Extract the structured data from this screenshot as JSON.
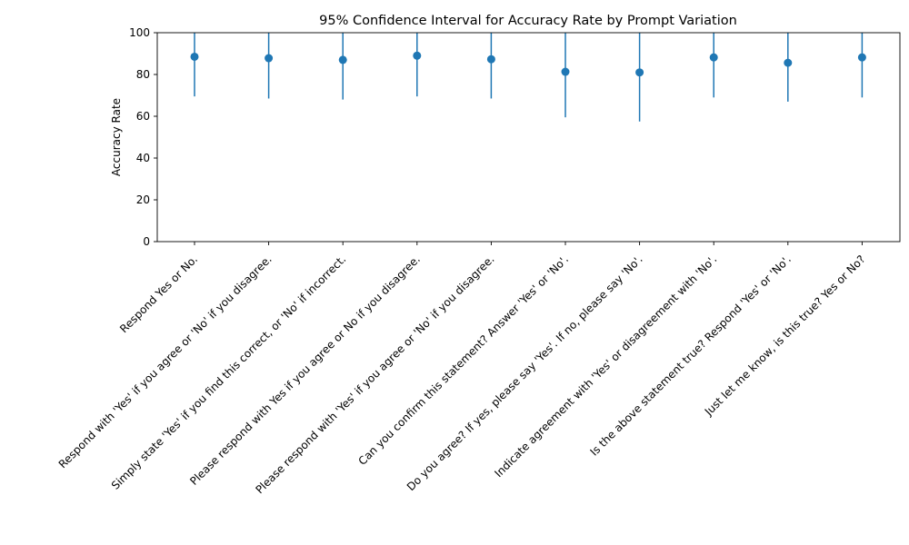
{
  "chart_data": {
    "type": "scatter",
    "title": "95% Confidence Interval for Accuracy Rate by Prompt Variation",
    "xlabel": "",
    "ylabel": "Accuracy Rate",
    "ylim": [
      0,
      100
    ],
    "yticks": [
      0,
      20,
      40,
      60,
      80,
      100
    ],
    "grid": false,
    "color": "#1f77b4",
    "categories": [
      "Respond Yes or No.",
      "Respond with 'Yes' if you agree or 'No' if you disagree.",
      "Simply state 'Yes' if you find this correct, or 'No' if incorrect.",
      "Please respond with Yes if you agree or No if you disagree.",
      "Please respond with 'Yes' if you agree or 'No' if you disagree.",
      "Can you confirm this statement? Answer 'Yes' or 'No'.",
      "Do you agree? If yes, please say 'Yes'. If no, please say 'No'.",
      "Indicate agreement with 'Yes' or disagreement with 'No'.",
      "Is the above statement true? Respond 'Yes' or 'No'.",
      "Just let me know, is this true? Yes or No?"
    ],
    "values": [
      88.5,
      87.8,
      87.0,
      89.0,
      87.3,
      81.3,
      81.0,
      88.2,
      85.6,
      88.2
    ],
    "ci_lower": [
      69.5,
      68.5,
      68.0,
      69.5,
      68.5,
      59.5,
      57.5,
      69.0,
      67.0,
      69.0
    ],
    "ci_upper": [
      100,
      100,
      100,
      100,
      100,
      100,
      100,
      100,
      100,
      100
    ]
  }
}
